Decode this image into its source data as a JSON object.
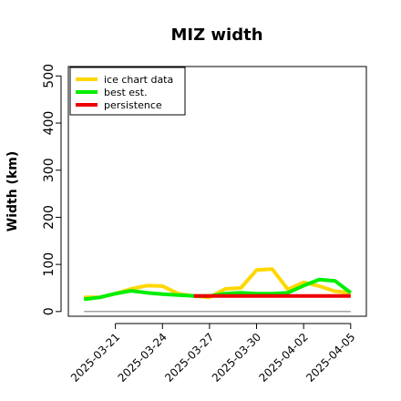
{
  "chart_data": {
    "type": "line",
    "title": "MIZ width",
    "xlabel": "",
    "ylabel": "Width (km)",
    "x_start": "2025-03-19",
    "x_end": "2025-04-05",
    "xlim": [
      "2025-03-18",
      "2025-04-06"
    ],
    "ylim": [
      -10,
      520
    ],
    "y_ticks": [
      0,
      100,
      200,
      300,
      400,
      500
    ],
    "x_tick_labels": [
      "2025-03-21",
      "2025-03-24",
      "2025-03-27",
      "2025-03-30",
      "2025-04-02",
      "2025-04-05"
    ],
    "x_tick_dates": [
      "2025-03-21",
      "2025-03-24",
      "2025-03-27",
      "2025-03-30",
      "2025-04-02",
      "2025-04-05"
    ],
    "legend_position": "top-left",
    "series": [
      {
        "name": "ice chart data",
        "color": "#FFD700",
        "x": [
          "2025-03-19",
          "2025-03-20",
          "2025-03-21",
          "2025-03-22",
          "2025-03-23",
          "2025-03-24",
          "2025-03-25",
          "2025-03-26",
          "2025-03-27",
          "2025-03-28",
          "2025-03-29",
          "2025-03-30",
          "2025-03-31",
          "2025-04-01",
          "2025-04-02",
          "2025-04-03",
          "2025-04-04",
          "2025-04-05"
        ],
        "values": [
          30,
          30,
          38,
          48,
          55,
          54,
          38,
          33,
          30,
          48,
          50,
          88,
          90,
          47,
          62,
          54,
          43,
          40
        ]
      },
      {
        "name": "best est.",
        "color": "#00EE00",
        "x": [
          "2025-03-19",
          "2025-03-20",
          "2025-03-21",
          "2025-03-22",
          "2025-03-23",
          "2025-03-24",
          "2025-03-25",
          "2025-03-26",
          "2025-03-27",
          "2025-03-28",
          "2025-03-29",
          "2025-03-30",
          "2025-03-31",
          "2025-04-01",
          "2025-04-02",
          "2025-04-03",
          "2025-04-04",
          "2025-04-05"
        ],
        "values": [
          26,
          30,
          38,
          44,
          40,
          37,
          35,
          33,
          33,
          38,
          40,
          38,
          38,
          40,
          55,
          68,
          65,
          40
        ]
      },
      {
        "name": "persistence",
        "color": "#EE0000",
        "x": [
          "2025-03-26",
          "2025-04-05"
        ],
        "values": [
          33,
          33
        ]
      },
      {
        "name": "",
        "color": "#808080",
        "x": [
          "2025-03-19",
          "2025-04-05"
        ],
        "values": [
          0,
          0
        ]
      }
    ]
  }
}
